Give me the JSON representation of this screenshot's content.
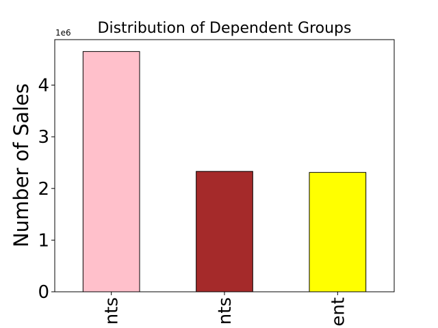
{
  "chart_data": {
    "type": "bar",
    "title": "Distribution of Dependent Groups",
    "xlabel": "",
    "ylabel": "Number of Sales",
    "scale_note": "1e6",
    "categories": [
      "nts",
      "nts",
      "ent"
    ],
    "values": [
      4.65,
      2.33,
      2.31
    ],
    "bar_colors": [
      "#ffc0cb",
      "#a52a2a",
      "#ffff00"
    ],
    "bar_edge_color": "#000000",
    "ylim": [
      0,
      4.88
    ],
    "yticks": [
      0,
      1,
      2,
      3,
      4
    ],
    "grid": false,
    "legend": "none"
  }
}
